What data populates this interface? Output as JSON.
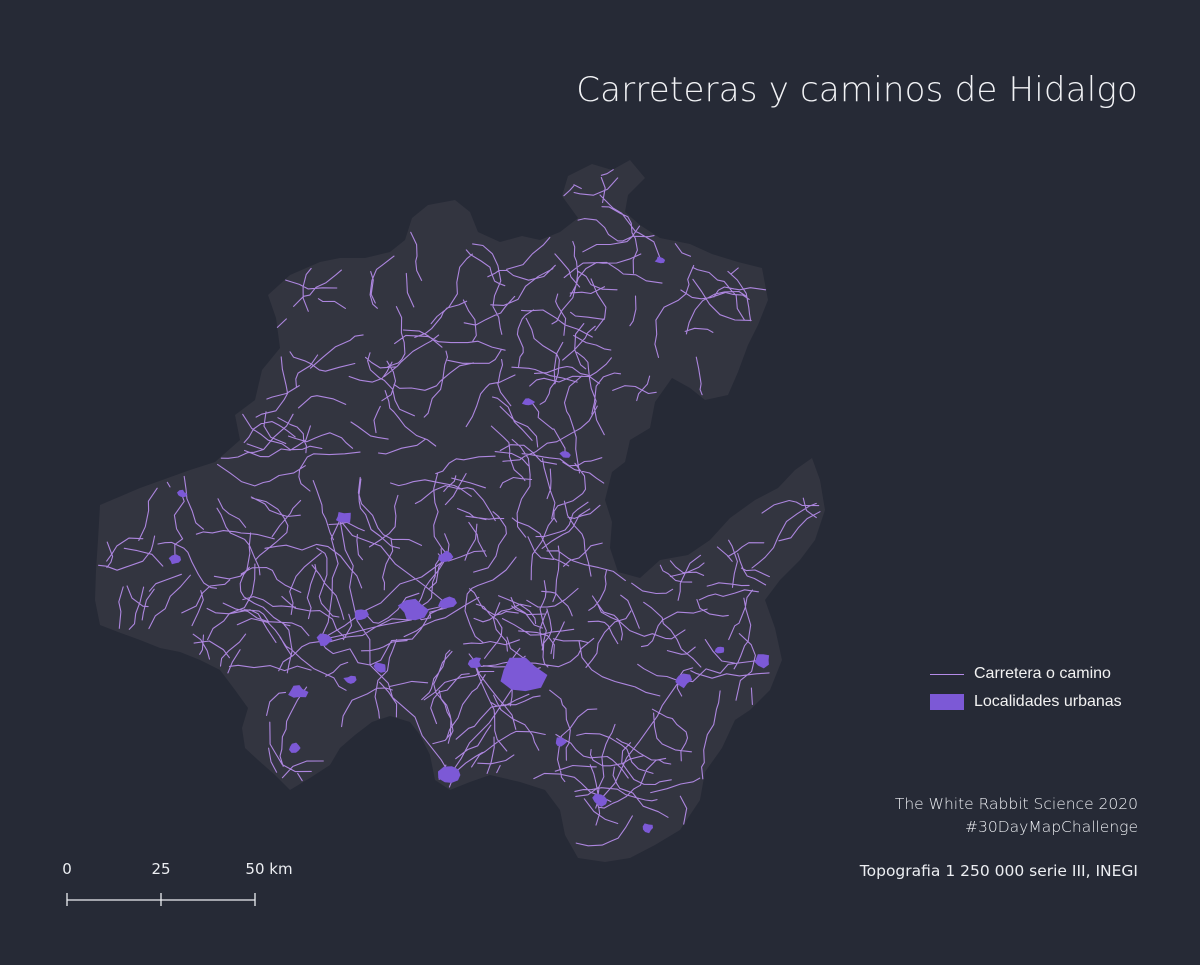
{
  "title": "Carreteras y caminos de Hidalgo",
  "legend": {
    "items": [
      {
        "label": "Carretera o camino",
        "symbol": "line",
        "color": "#b48be8"
      },
      {
        "label": "Localidades urbanas",
        "symbol": "area",
        "color": "#7c59d6"
      }
    ]
  },
  "credits": {
    "author": "The White Rabbit Science 2020",
    "hashtag": "#30DayMapChallenge"
  },
  "source": "Topografia 1 250 000 serie III, INEGI",
  "scale_bar": {
    "labels": [
      "0",
      "25",
      "50 km"
    ],
    "unit": "km"
  },
  "colors": {
    "background": "#262a36",
    "state_fill": "#333540",
    "road": "#b48be8",
    "urban": "#7c59d6"
  }
}
